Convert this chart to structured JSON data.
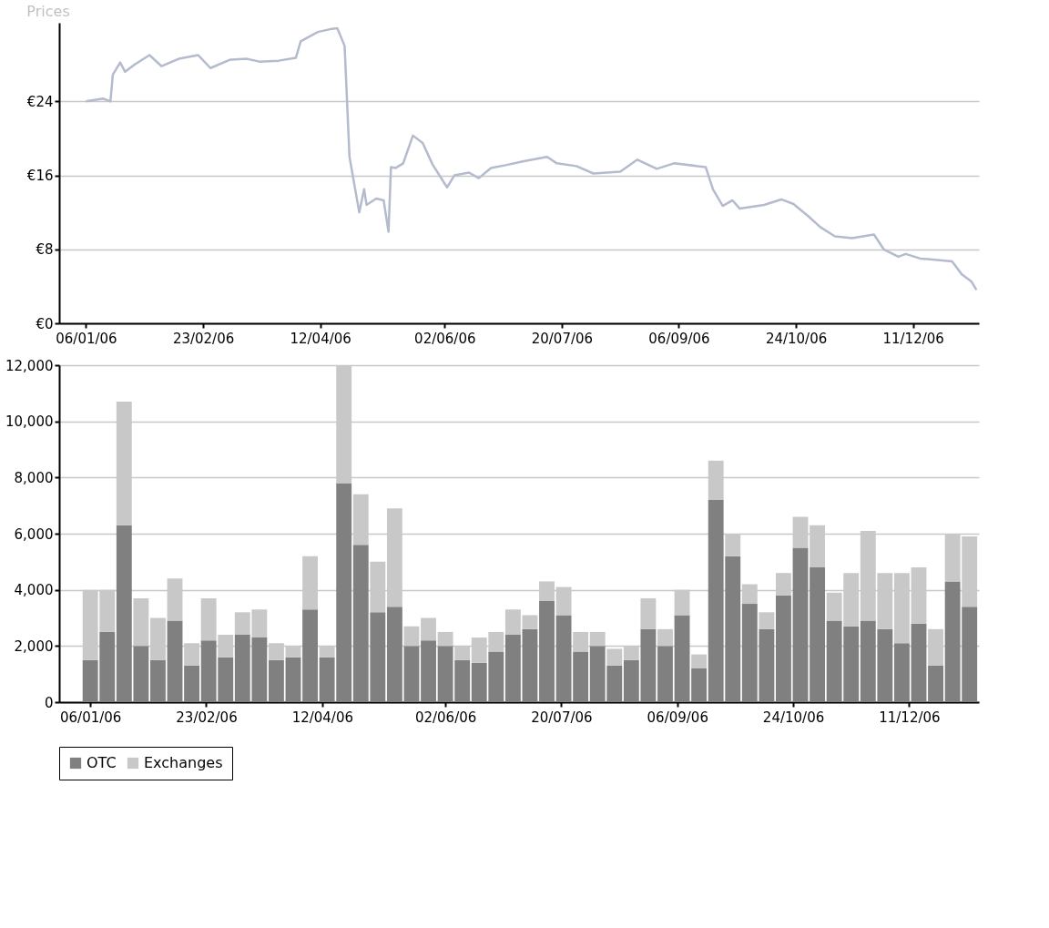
{
  "chart_data": [
    {
      "type": "line",
      "title": "Prices",
      "series": [
        {
          "color": "#b3bbcc",
          "x": [
            "2006-01-06",
            "2006-01-13",
            "2006-01-16",
            "2006-01-17",
            "2006-01-20",
            "2006-01-22",
            "2006-01-26",
            "2006-02-01",
            "2006-02-06",
            "2006-02-13",
            "2006-02-21",
            "2006-02-26",
            "2006-03-06",
            "2006-03-13",
            "2006-03-18",
            "2006-03-26",
            "2006-04-02",
            "2006-04-04",
            "2006-04-11",
            "2006-04-16",
            "2006-04-19",
            "2006-04-22",
            "2006-04-23",
            "2006-04-24",
            "2006-04-28",
            "2006-04-30",
            "2006-05-01",
            "2006-05-05",
            "2006-05-08",
            "2006-05-10",
            "2006-05-11",
            "2006-05-13",
            "2006-05-16",
            "2006-05-20",
            "2006-05-24",
            "2006-05-28",
            "2006-06-03",
            "2006-06-06",
            "2006-06-12",
            "2006-06-16",
            "2006-06-21",
            "2006-06-27",
            "2006-07-04",
            "2006-07-14",
            "2006-07-18",
            "2006-07-26",
            "2006-08-02",
            "2006-08-13",
            "2006-08-20",
            "2006-08-28",
            "2006-09-04",
            "2006-09-17",
            "2006-09-20",
            "2006-09-24",
            "2006-09-28",
            "2006-10-01",
            "2006-10-11",
            "2006-10-18",
            "2006-10-23",
            "2006-10-29",
            "2006-11-03",
            "2006-11-09",
            "2006-11-16",
            "2006-11-25",
            "2006-11-29",
            "2006-12-05",
            "2006-12-08",
            "2006-12-14",
            "2006-12-23",
            "2006-12-27",
            "2006-12-31",
            "2007-01-04",
            "2007-01-06"
          ],
          "values": [
            24.0,
            24.3,
            24.0,
            26.9,
            28.2,
            27.2,
            28.0,
            29.0,
            27.8,
            28.6,
            29.0,
            27.6,
            28.5,
            28.6,
            28.3,
            28.4,
            28.7,
            30.5,
            31.5,
            31.8,
            31.9,
            30.0,
            24.0,
            18.0,
            12.0,
            14.5,
            12.8,
            13.5,
            13.3,
            9.9,
            16.9,
            16.8,
            17.3,
            20.3,
            19.5,
            17.2,
            14.7,
            16.0,
            16.3,
            15.7,
            16.8,
            17.1,
            17.5,
            18.0,
            17.3,
            17.0,
            16.2,
            16.4,
            17.7,
            16.7,
            17.3,
            16.9,
            14.5,
            12.7,
            13.3,
            12.4,
            12.8,
            13.4,
            12.9,
            11.6,
            10.4,
            9.4,
            9.2,
            9.6,
            8.0,
            7.2,
            7.5,
            7.0,
            6.8,
            6.7,
            5.3,
            4.5,
            3.6
          ]
        }
      ],
      "xlim": [
        "2005-12-26",
        "2007-01-07"
      ],
      "xticks": [
        {
          "value": "2006-01-06",
          "label": "06/01/06"
        },
        {
          "value": "2006-02-23",
          "label": "23/02/06"
        },
        {
          "value": "2006-04-12",
          "label": "12/04/06"
        },
        {
          "value": "2006-06-02",
          "label": "02/06/06"
        },
        {
          "value": "2006-07-20",
          "label": "20/07/06"
        },
        {
          "value": "2006-09-06",
          "label": "06/09/06"
        },
        {
          "value": "2006-10-24",
          "label": "24/10/06"
        },
        {
          "value": "2006-12-11",
          "label": "11/12/06"
        }
      ],
      "ylim": [
        0,
        32.5
      ],
      "yticks": [
        {
          "value": 0,
          "label": "€0"
        },
        {
          "value": 8,
          "label": "€8"
        },
        {
          "value": 16,
          "label": "€16"
        },
        {
          "value": 24,
          "label": "€24"
        }
      ],
      "grid": "y",
      "line_style": "solid"
    },
    {
      "type": "bar",
      "stacked": true,
      "legend": "bottom",
      "x": [
        "2006-01-06",
        "2006-01-13",
        "2006-01-20",
        "2006-01-27",
        "2006-02-03",
        "2006-02-10",
        "2006-02-17",
        "2006-02-24",
        "2006-03-03",
        "2006-03-10",
        "2006-03-17",
        "2006-03-24",
        "2006-03-31",
        "2006-04-07",
        "2006-04-14",
        "2006-04-21",
        "2006-04-28",
        "2006-05-05",
        "2006-05-12",
        "2006-05-19",
        "2006-05-26",
        "2006-06-02",
        "2006-06-09",
        "2006-06-16",
        "2006-06-23",
        "2006-06-30",
        "2006-07-07",
        "2006-07-14",
        "2006-07-21",
        "2006-07-28",
        "2006-08-04",
        "2006-08-11",
        "2006-08-18",
        "2006-08-25",
        "2006-09-01",
        "2006-09-08",
        "2006-09-15",
        "2006-09-22",
        "2006-09-29",
        "2006-10-06",
        "2006-10-13",
        "2006-10-20",
        "2006-10-27",
        "2006-11-03",
        "2006-11-10",
        "2006-11-17",
        "2006-11-24",
        "2006-12-01",
        "2006-12-08",
        "2006-12-15",
        "2006-12-22",
        "2006-12-29",
        "2007-01-05"
      ],
      "series": [
        {
          "name": "OTC",
          "color": "#808080",
          "values": [
            1500,
            2500,
            6300,
            2000,
            1500,
            2900,
            1300,
            2200,
            1600,
            2400,
            2300,
            1500,
            1600,
            3300,
            1600,
            7800,
            5600,
            3200,
            3400,
            2000,
            2200,
            2000,
            1500,
            1400,
            1800,
            2400,
            2600,
            3600,
            3100,
            1800,
            2000,
            1300,
            1500,
            2600,
            2000,
            3100,
            1200,
            7200,
            5200,
            3500,
            2600,
            3800,
            5500,
            4800,
            2900,
            2700,
            2900,
            2600,
            2100,
            2800,
            1300,
            4300,
            3400
          ]
        },
        {
          "name": "Exchanges",
          "color": "#c8c8c8",
          "values": [
            2500,
            1500,
            4400,
            1700,
            1500,
            1500,
            800,
            1500,
            800,
            800,
            1000,
            600,
            400,
            1900,
            400,
            4200,
            1800,
            1800,
            3500,
            700,
            800,
            500,
            500,
            900,
            700,
            900,
            500,
            700,
            1000,
            700,
            500,
            600,
            500,
            1100,
            600,
            900,
            500,
            1400,
            800,
            700,
            600,
            800,
            1100,
            1500,
            1000,
            1900,
            3200,
            2000,
            2500,
            2000,
            1300,
            1700,
            2500
          ]
        }
      ],
      "xlim": [
        "2005-12-26",
        "2007-01-07"
      ],
      "xticks": [
        {
          "value": "2006-01-06",
          "label": "06/01/06"
        },
        {
          "value": "2006-02-23",
          "label": "23/02/06"
        },
        {
          "value": "2006-04-12",
          "label": "12/04/06"
        },
        {
          "value": "2006-06-02",
          "label": "02/06/06"
        },
        {
          "value": "2006-07-20",
          "label": "20/07/06"
        },
        {
          "value": "2006-09-06",
          "label": "06/09/06"
        },
        {
          "value": "2006-10-24",
          "label": "24/10/06"
        },
        {
          "value": "2006-12-11",
          "label": "11/12/06"
        }
      ],
      "ylim": [
        0,
        12000
      ],
      "yticks": [
        {
          "value": 0,
          "label": "0"
        },
        {
          "value": 2000,
          "label": "2,000"
        },
        {
          "value": 4000,
          "label": "4,000"
        },
        {
          "value": 6000,
          "label": "6,000"
        },
        {
          "value": 8000,
          "label": "8,000"
        },
        {
          "value": 10000,
          "label": "10,000"
        },
        {
          "value": 12000,
          "label": "12,000"
        }
      ],
      "grid": "y"
    }
  ]
}
